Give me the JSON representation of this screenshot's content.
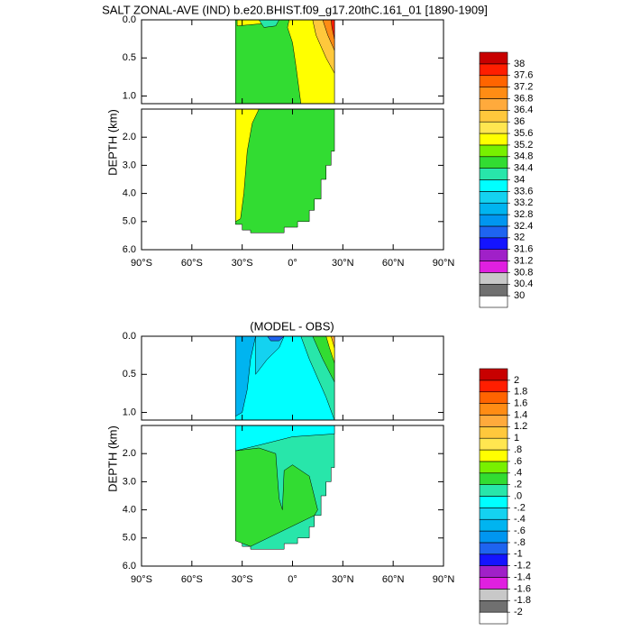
{
  "chart_data": [
    {
      "type": "contour",
      "title": "SALT ZONAL-AVE (IND) b.e20.BHIST.f09_g17.20thC.161_01 [1890-1909]",
      "ylabel": "DEPTH (km)",
      "xlim": [
        -90,
        90
      ],
      "xticks": [
        {
          "value": -90,
          "label": "90°S"
        },
        {
          "value": -60,
          "label": "60°S"
        },
        {
          "value": -30,
          "label": "30°S"
        },
        {
          "value": 0,
          "label": "0°"
        },
        {
          "value": 30,
          "label": "30°N"
        },
        {
          "value": 60,
          "label": "60°N"
        },
        {
          "value": 90,
          "label": "90°N"
        }
      ],
      "sections": [
        {
          "ylim": [
            0,
            1.1
          ],
          "yticks": [
            {
              "value": 0,
              "label": "0.0"
            },
            {
              "value": 0.5,
              "label": "0.5"
            },
            {
              "value": 1,
              "label": "1.0"
            }
          ]
        },
        {
          "ylim": [
            1,
            6
          ],
          "yticks": [
            {
              "value": 2,
              "label": "2.0"
            },
            {
              "value": 3,
              "label": "3.0"
            },
            {
              "value": 4,
              "label": "4.0"
            },
            {
              "value": 5,
              "label": "5.0"
            },
            {
              "value": 6,
              "label": "6.0"
            }
          ]
        }
      ],
      "levels": [
        30,
        30.4,
        30.8,
        31.2,
        31.6,
        32,
        32.4,
        32.8,
        33.2,
        33.6,
        34,
        34.4,
        34.8,
        35.2,
        35.6,
        36,
        36.4,
        36.8,
        37.2,
        37.6,
        38
      ],
      "colors": [
        "#ffffff",
        "#707070",
        "#c8c8c8",
        "#e020e0",
        "#a020c8",
        "#1414ff",
        "#1e64f0",
        "#0096f0",
        "#00b4f0",
        "#14d2f0",
        "#00ffff",
        "#28e6aa",
        "#32dc32",
        "#78f000",
        "#ffff00",
        "#ffe650",
        "#ffc83c",
        "#ffaa3c",
        "#ff8c14",
        "#ff6400",
        "#ff1e00",
        "#c80000"
      ]
    },
    {
      "type": "contour",
      "title": "(MODEL - OBS)",
      "ylabel": "DEPTH (km)",
      "xlim": [
        -90,
        90
      ],
      "xticks": [
        {
          "value": -90,
          "label": "90°S"
        },
        {
          "value": -60,
          "label": "60°S"
        },
        {
          "value": -30,
          "label": "30°S"
        },
        {
          "value": 0,
          "label": "0°"
        },
        {
          "value": 30,
          "label": "30°N"
        },
        {
          "value": 60,
          "label": "60°N"
        },
        {
          "value": 90,
          "label": "90°N"
        }
      ],
      "sections": [
        {
          "ylim": [
            0,
            1.1
          ],
          "yticks": [
            {
              "value": 0,
              "label": "0.0"
            },
            {
              "value": 0.5,
              "label": "0.5"
            },
            {
              "value": 1,
              "label": "1.0"
            }
          ]
        },
        {
          "ylim": [
            1,
            6
          ],
          "yticks": [
            {
              "value": 2,
              "label": "2.0"
            },
            {
              "value": 3,
              "label": "3.0"
            },
            {
              "value": 4,
              "label": "4.0"
            },
            {
              "value": 5,
              "label": "5.0"
            },
            {
              "value": 6,
              "label": "6.0"
            }
          ]
        }
      ],
      "levels": [
        -2,
        -1.8,
        -1.6,
        -1.4,
        -1.2,
        -1,
        {
          "value": -0.8,
          "label": "-.8"
        },
        {
          "value": -0.6,
          "label": "-.6"
        },
        {
          "value": -0.4,
          "label": "-.4"
        },
        {
          "value": -0.2,
          "label": "-.2"
        },
        {
          "value": 0,
          "label": ".0"
        },
        {
          "value": 0.2,
          "label": ".2"
        },
        {
          "value": 0.4,
          "label": ".4"
        },
        {
          "value": 0.6,
          "label": ".6"
        },
        {
          "value": 0.8,
          "label": ".8"
        },
        1,
        1.2,
        1.4,
        1.6,
        1.8,
        2
      ],
      "colors": [
        "#ffffff",
        "#707070",
        "#c8c8c8",
        "#e020e0",
        "#a020c8",
        "#1414ff",
        "#1e64f0",
        "#0096f0",
        "#00b4f0",
        "#14d2f0",
        "#00ffff",
        "#28e6aa",
        "#32dc32",
        "#78f000",
        "#ffff00",
        "#ffe650",
        "#ffc83c",
        "#ffaa3c",
        "#ff8c14",
        "#ff6400",
        "#ff1e00",
        "#c80000"
      ]
    }
  ]
}
